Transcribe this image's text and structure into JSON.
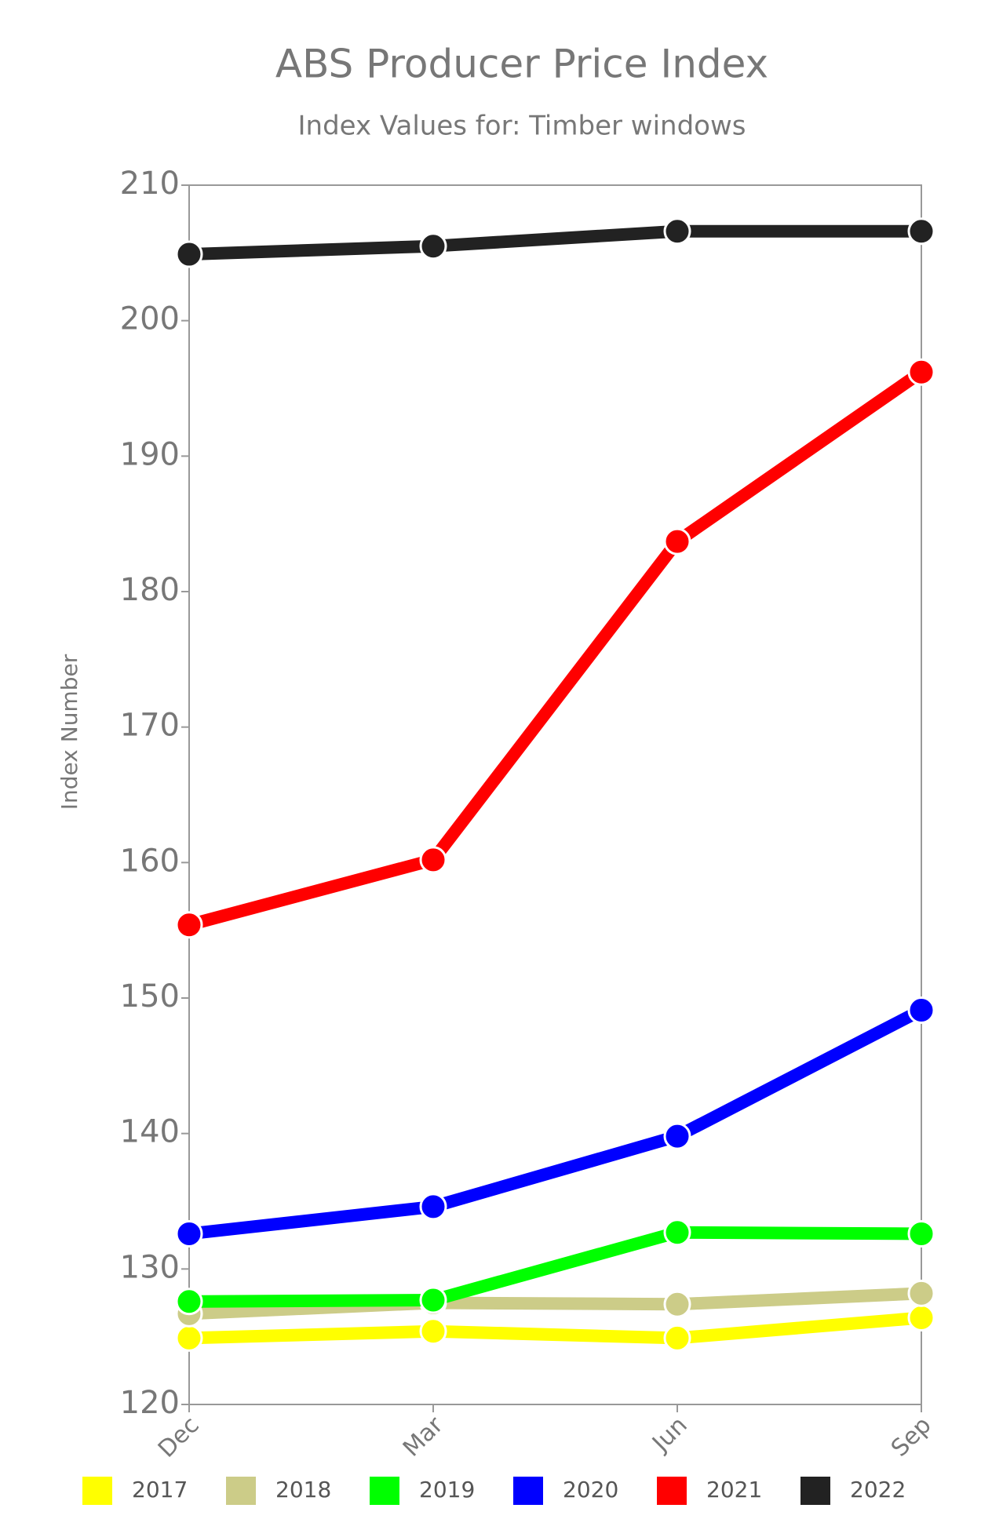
{
  "chart_data": {
    "type": "line",
    "title": "ABS Producer Price Index",
    "subtitle": "Index Values for: Timber windows",
    "y_label": "Index Number",
    "categories": [
      "Dec",
      "Mar",
      "Jun",
      "Sep"
    ],
    "ylim": [
      120,
      210
    ],
    "yticks": [
      120,
      130,
      140,
      150,
      160,
      170,
      180,
      190,
      200,
      210
    ],
    "series": [
      {
        "name": "2017",
        "color": "#ffff00",
        "values": [
          124.9,
          125.4,
          124.9,
          126.4
        ]
      },
      {
        "name": "2018",
        "color": "#cccc88",
        "values": [
          126.7,
          127.5,
          127.4,
          128.2
        ]
      },
      {
        "name": "2019",
        "color": "#00ff00",
        "values": [
          127.6,
          127.7,
          132.7,
          132.6
        ]
      },
      {
        "name": "2020",
        "color": "#0000ff",
        "values": [
          132.6,
          134.6,
          139.8,
          149.1
        ]
      },
      {
        "name": "2021",
        "color": "#ff0000",
        "values": [
          155.4,
          160.2,
          183.7,
          196.2
        ]
      },
      {
        "name": "2022",
        "color": "#222222",
        "values": [
          204.9,
          205.5,
          206.6,
          206.6
        ]
      }
    ]
  }
}
